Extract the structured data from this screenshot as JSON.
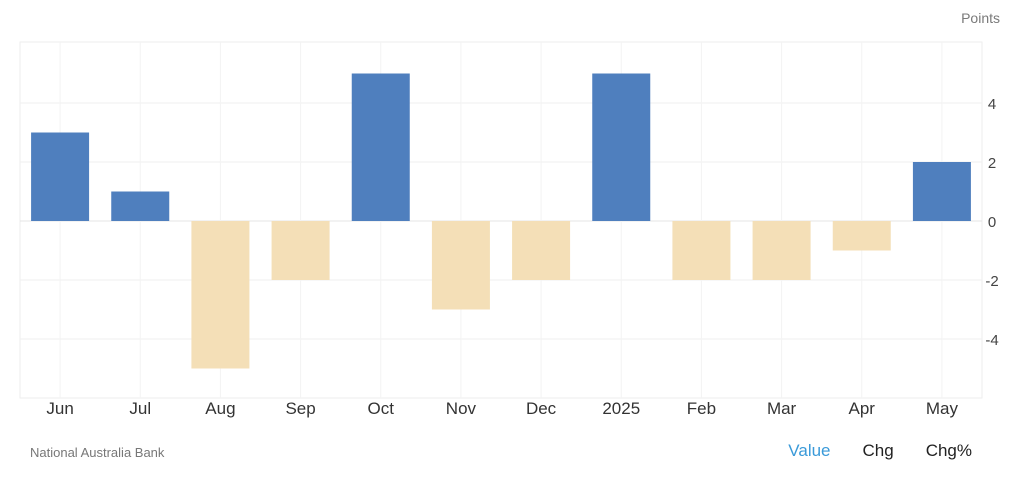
{
  "chart_data": {
    "type": "bar",
    "categories": [
      "Jun",
      "Jul",
      "Aug",
      "Sep",
      "Oct",
      "Nov",
      "Dec",
      "2025",
      "Feb",
      "Mar",
      "Apr",
      "May"
    ],
    "values": [
      3,
      1,
      -5,
      -2,
      5,
      -3,
      -2,
      5,
      -2,
      -2,
      -1,
      2
    ],
    "ylabel": "Points",
    "ylim": [
      -6,
      6
    ],
    "yticks": [
      4,
      2,
      0,
      -2,
      -4
    ],
    "grid": true,
    "colors": {
      "positive": "#4f7fbe",
      "negative": "#f4dfb7"
    }
  },
  "unit_label": "Points",
  "source": "National Australia Bank",
  "view_tabs": [
    {
      "label": "Value",
      "active": true
    },
    {
      "label": "Chg",
      "active": false
    },
    {
      "label": "Chg%",
      "active": false
    }
  ]
}
